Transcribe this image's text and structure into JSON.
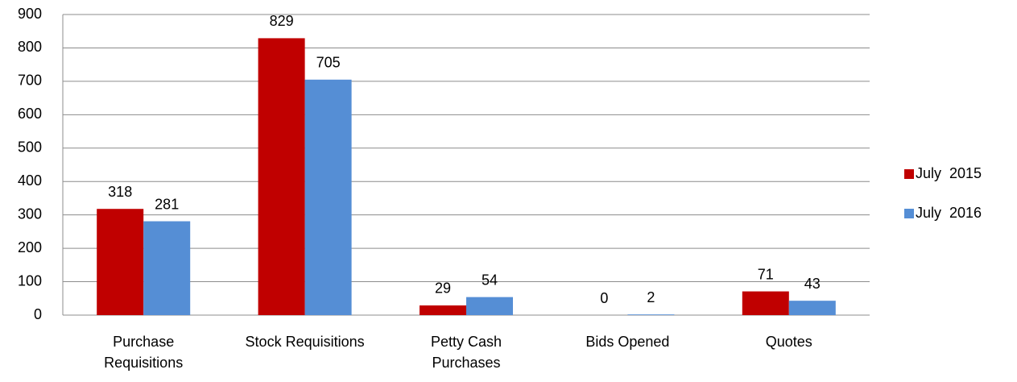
{
  "chart_data": {
    "type": "bar",
    "categories": [
      "Purchase Requisitions",
      "Stock Requisitions",
      "Petty Cash Purchases",
      "Bids Opened",
      "Quotes"
    ],
    "series": [
      {
        "name": "July  2015",
        "color": "#c00000",
        "values": [
          318,
          829,
          29,
          0,
          71
        ]
      },
      {
        "name": "July  2016",
        "color": "#558ed5",
        "values": [
          281,
          705,
          54,
          2,
          43
        ]
      }
    ],
    "ylim": [
      0,
      900
    ],
    "yticks": [
      0,
      100,
      200,
      300,
      400,
      500,
      600,
      700,
      800,
      900
    ],
    "grid": true,
    "legend": "right"
  }
}
